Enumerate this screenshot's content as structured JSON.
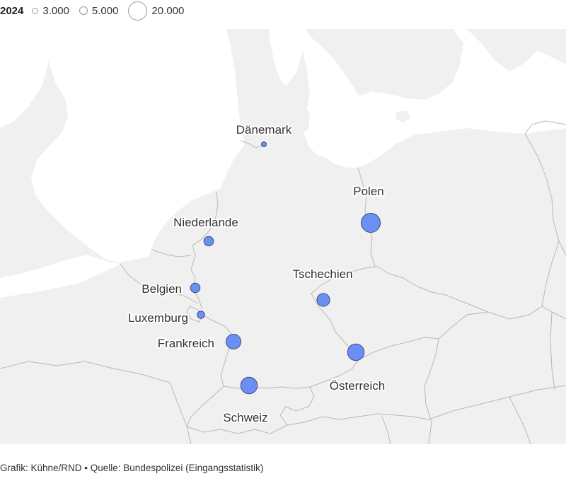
{
  "legend": {
    "year": "2024",
    "items": [
      {
        "label": "3.000",
        "value": 3000
      },
      {
        "label": "5.000",
        "value": 5000
      },
      {
        "label": "20.000",
        "value": 20000
      }
    ]
  },
  "map": {
    "land_color": "#f0f0f0",
    "sea_color": "#ffffff",
    "border_color": "#b8b8b8",
    "bubble_color": "#6b8ff4",
    "bubble_stroke": "#3a4a7a",
    "countries": [
      {
        "name": "Dänemark",
        "value": 1000
      },
      {
        "name": "Polen",
        "value": 20000
      },
      {
        "name": "Niederlande",
        "value": 5000
      },
      {
        "name": "Belgien",
        "value": 5000
      },
      {
        "name": "Luxemburg",
        "value": 3000
      },
      {
        "name": "Frankreich",
        "value": 12000
      },
      {
        "name": "Tschechien",
        "value": 9000
      },
      {
        "name": "Österreich",
        "value": 15000
      },
      {
        "name": "Schweiz",
        "value": 15000
      }
    ]
  },
  "footer": {
    "text": "Grafik: Kühne/RND • Quelle: Bundespolizei (Eingangsstatistik)"
  }
}
